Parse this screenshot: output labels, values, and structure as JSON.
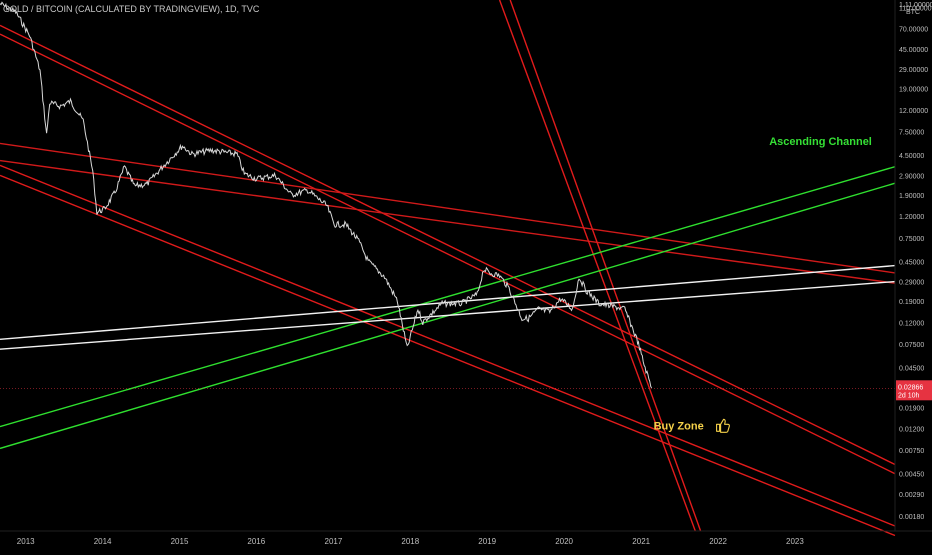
{
  "header": {
    "symbol_text": "GOLD / BITCOIN (CALCULATED BY TRADINGVIEW), 1D, TVC"
  },
  "chart_data": {
    "type": "line",
    "title": "GOLD / BITCOIN (CALCULATED BY TRADINGVIEW), 1D, TVC",
    "y_scale": "log",
    "y_currency": "BTC",
    "ylim": [
      0.0013,
      130
    ],
    "xlim": [
      "2012-09-01",
      "2024-04-20"
    ],
    "price_ticks": [
      "110.00000",
      "70.00000",
      "45.00000",
      "29.00000",
      "19.00000",
      "12.00000",
      "7.50000",
      "4.50000",
      "2.90000",
      "1.90000",
      "1.20000",
      "0.75000",
      "0.45000",
      "0.29000",
      "0.19000",
      "0.12000",
      "0.07500",
      "0.04500",
      "0.01900",
      "0.01200",
      "0.00750",
      "0.00450",
      "0.00290",
      "0.00180"
    ],
    "top_tick": "1.11.00000",
    "time_ticks": [
      "2013",
      "2014",
      "2015",
      "2016",
      "2017",
      "2018",
      "2019",
      "2020",
      "2021",
      "2022",
      "2023"
    ],
    "current_price": {
      "value": 0.02866,
      "label": "0.02866",
      "countdown": "2d 10h",
      "color": "#f23645"
    },
    "series": [
      {
        "color": "#d8d8d8",
        "points": [
          [
            "2012-09-01",
            120
          ],
          [
            "2012-11-15",
            100
          ],
          [
            "2013-01-20",
            60
          ],
          [
            "2013-03-10",
            28
          ],
          [
            "2013-04-10",
            7.0
          ],
          [
            "2013-04-25",
            14
          ],
          [
            "2013-06-15",
            13
          ],
          [
            "2013-08-01",
            14.5
          ],
          [
            "2013-10-01",
            9.5
          ],
          [
            "2013-11-15",
            3.2
          ],
          [
            "2013-12-05",
            1.3
          ],
          [
            "2014-01-10",
            1.4
          ],
          [
            "2014-03-01",
            2.0
          ],
          [
            "2014-04-15",
            3.5
          ],
          [
            "2014-06-01",
            2.3
          ],
          [
            "2014-08-01",
            2.4
          ],
          [
            "2014-10-01",
            3.3
          ],
          [
            "2015-01-15",
            5.5
          ],
          [
            "2015-03-01",
            4.6
          ],
          [
            "2015-06-01",
            5.0
          ],
          [
            "2015-08-01",
            4.8
          ],
          [
            "2015-10-01",
            4.6
          ],
          [
            "2015-11-05",
            3.0
          ],
          [
            "2016-01-01",
            2.7
          ],
          [
            "2016-04-01",
            2.9
          ],
          [
            "2016-06-15",
            1.9
          ],
          [
            "2016-09-01",
            2.1
          ],
          [
            "2016-12-01",
            1.5
          ],
          [
            "2017-01-05",
            1.0
          ],
          [
            "2017-03-01",
            1.0
          ],
          [
            "2017-05-01",
            0.7
          ],
          [
            "2017-06-15",
            0.45
          ],
          [
            "2017-09-01",
            0.32
          ],
          [
            "2017-11-01",
            0.19
          ],
          [
            "2017-12-17",
            0.068
          ],
          [
            "2018-01-15",
            0.11
          ],
          [
            "2018-02-06",
            0.16
          ],
          [
            "2018-03-01",
            0.12
          ],
          [
            "2018-06-01",
            0.18
          ],
          [
            "2018-09-01",
            0.18
          ],
          [
            "2018-11-15",
            0.22
          ],
          [
            "2018-12-15",
            0.38
          ],
          [
            "2019-01-15",
            0.35
          ],
          [
            "2019-03-01",
            0.33
          ],
          [
            "2019-04-15",
            0.25
          ],
          [
            "2019-06-15",
            0.13
          ],
          [
            "2019-07-15",
            0.13
          ],
          [
            "2019-09-01",
            0.16
          ],
          [
            "2019-10-25",
            0.15
          ],
          [
            "2019-12-15",
            0.2
          ],
          [
            "2020-02-10",
            0.16
          ],
          [
            "2020-03-12",
            0.32
          ],
          [
            "2020-04-15",
            0.24
          ],
          [
            "2020-06-15",
            0.18
          ],
          [
            "2020-08-15",
            0.17
          ],
          [
            "2020-10-15",
            0.16
          ],
          [
            "2020-12-15",
            0.08
          ],
          [
            "2021-01-15",
            0.048
          ],
          [
            "2021-02-20",
            0.029
          ]
        ]
      }
    ],
    "trendlines": [
      {
        "color": "#e11b1b",
        "from": [
          "2012-09-01",
          75
        ],
        "to": [
          "2024-04-20",
          0.0055
        ]
      },
      {
        "color": "#e11b1b",
        "from": [
          "2012-09-01",
          62
        ],
        "to": [
          "2024-04-20",
          0.0045
        ]
      },
      {
        "color": "#e11b1b",
        "from": [
          "2012-09-01",
          3.6
        ],
        "to": [
          "2024-04-20",
          0.00145
        ]
      },
      {
        "color": "#e11b1b",
        "from": [
          "2012-09-01",
          2.9
        ],
        "to": [
          "2024-04-20",
          0.00118
        ]
      },
      {
        "color": "#d11a1a",
        "from": [
          "2012-09-01",
          5.8
        ],
        "to": [
          "2024-04-20",
          0.35
        ]
      },
      {
        "color": "#d11a1a",
        "from": [
          "2012-09-01",
          4.0
        ],
        "to": [
          "2024-04-20",
          0.28
        ]
      },
      {
        "color": "#e11b1b",
        "from": [
          "2019-03-01",
          130
        ],
        "to": [
          "2021-09-15",
          0.0013
        ]
      },
      {
        "color": "#e11b1b",
        "from": [
          "2019-04-20",
          130
        ],
        "to": [
          "2021-10-10",
          0.0013
        ]
      },
      {
        "color": "#2fe02f",
        "from": [
          "2012-09-01",
          0.0125
        ],
        "to": [
          "2024-04-20",
          3.5
        ]
      },
      {
        "color": "#2fe02f",
        "from": [
          "2012-09-01",
          0.0078
        ],
        "to": [
          "2024-04-20",
          2.45
        ]
      },
      {
        "color": "#f2f2f2",
        "from": [
          "2012-09-01",
          0.083
        ],
        "to": [
          "2024-04-20",
          0.41
        ]
      },
      {
        "color": "#f2f2f2",
        "from": [
          "2012-09-01",
          0.067
        ],
        "to": [
          "2024-04-20",
          0.29
        ]
      }
    ],
    "annotations": [
      {
        "text": "Ascending Channel",
        "color": "#35e035",
        "x": "2022-09-01",
        "y": 5.6
      },
      {
        "text": "Buy Zone",
        "color": "#f5d14a",
        "x": "2021-03-01",
        "y": 0.0118,
        "icon": "thumbs-up-icon"
      }
    ]
  }
}
